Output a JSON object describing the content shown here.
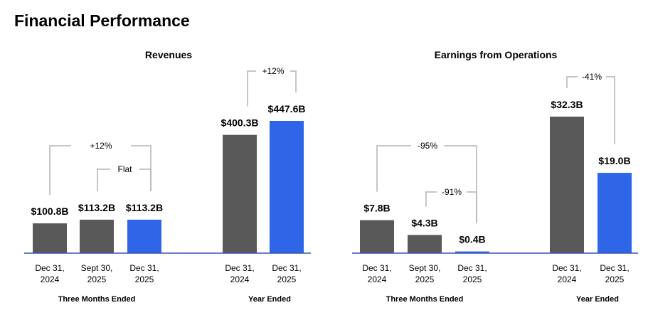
{
  "page": {
    "title": "Financial Performance"
  },
  "colors": {
    "gray": "#595959",
    "blue": "#2f66e8",
    "axis": "#3a55b4",
    "bracket": "#b3b3b3"
  },
  "chart_data": [
    {
      "type": "bar",
      "title": "Revenues",
      "units": "$B",
      "categories": [
        "Dec 31, 2024",
        "Sept 30, 2025",
        "Dec 31, 2025",
        "Dec 31, 2024",
        "Dec 31, 2025"
      ],
      "category_lines": [
        [
          "Dec 31,",
          "2024"
        ],
        [
          "Sept 30,",
          "2025"
        ],
        [
          "Dec 31,",
          "2025"
        ],
        [
          "Dec 31,",
          "2024"
        ],
        [
          "Dec 31,",
          "2025"
        ]
      ],
      "groups": [
        {
          "label": "Three Months Ended",
          "indices": [
            0,
            1,
            2
          ]
        },
        {
          "label": "Year Ended",
          "indices": [
            3,
            4
          ]
        }
      ],
      "values": [
        100.8,
        113.2,
        113.2,
        400.3,
        447.6
      ],
      "value_labels": [
        "$100.8B",
        "$113.2B",
        "$113.2B",
        "$400.3B",
        "$447.6B"
      ],
      "highlight": [
        false,
        false,
        true,
        false,
        true
      ],
      "comparisons": [
        {
          "from": 0,
          "to": 2,
          "label": "+12%"
        },
        {
          "from": 1,
          "to": 2,
          "label": "Flat"
        },
        {
          "from": 3,
          "to": 4,
          "label": "+12%"
        }
      ],
      "ylim": [
        0,
        447.6
      ]
    },
    {
      "type": "bar",
      "title": "Earnings from Operations",
      "units": "$B",
      "categories": [
        "Dec 31, 2024",
        "Sept 30, 2025",
        "Dec 31, 2025",
        "Dec 31, 2024",
        "Dec 31, 2025"
      ],
      "category_lines": [
        [
          "Dec 31,",
          "2024"
        ],
        [
          "Sept 30,",
          "2025"
        ],
        [
          "Dec 31,",
          "2025"
        ],
        [
          "Dec 31,",
          "2024"
        ],
        [
          "Dec 31,",
          "2025"
        ]
      ],
      "groups": [
        {
          "label": "Three Months Ended",
          "indices": [
            0,
            1,
            2
          ]
        },
        {
          "label": "Year Ended",
          "indices": [
            3,
            4
          ]
        }
      ],
      "values": [
        7.8,
        4.3,
        0.4,
        32.3,
        19.0
      ],
      "value_labels": [
        "$7.8B",
        "$4.3B",
        "$0.4B",
        "$32.3B",
        "$19.0B"
      ],
      "highlight": [
        false,
        false,
        true,
        false,
        true
      ],
      "comparisons": [
        {
          "from": 0,
          "to": 2,
          "label": "-95%"
        },
        {
          "from": 1,
          "to": 2,
          "label": "-91%"
        },
        {
          "from": 3,
          "to": 4,
          "label": "-41%"
        }
      ],
      "ylim": [
        0,
        32.3
      ]
    }
  ]
}
